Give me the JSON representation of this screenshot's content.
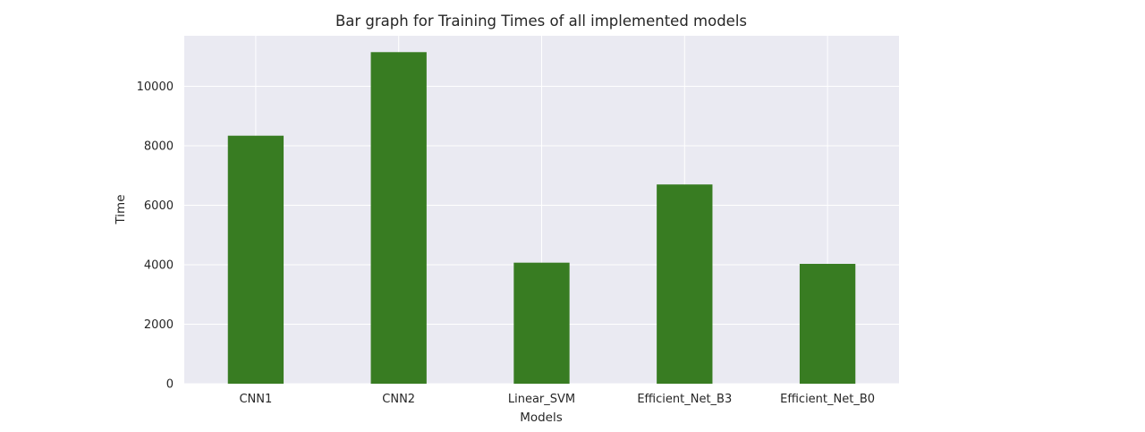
{
  "chart_data": {
    "type": "bar",
    "title": "Bar graph for Training Times of all implemented models",
    "xlabel": "Models",
    "ylabel": "Time",
    "categories": [
      "CNN1",
      "CNN2",
      "Linear_SVM",
      "Efficient_Net_B3",
      "Efficient_Net_B0"
    ],
    "values": [
      8340,
      11150,
      4070,
      6700,
      4030
    ],
    "ylim": [
      0,
      11700
    ],
    "yticks": [
      "0",
      "2000",
      "4000",
      "6000",
      "8000",
      "10000"
    ],
    "grid": true,
    "legend": "none",
    "colors": {
      "bar": "#387c22",
      "plot_background": "#eaeaf2",
      "grid": "#ffffff",
      "text": "#262626"
    }
  }
}
